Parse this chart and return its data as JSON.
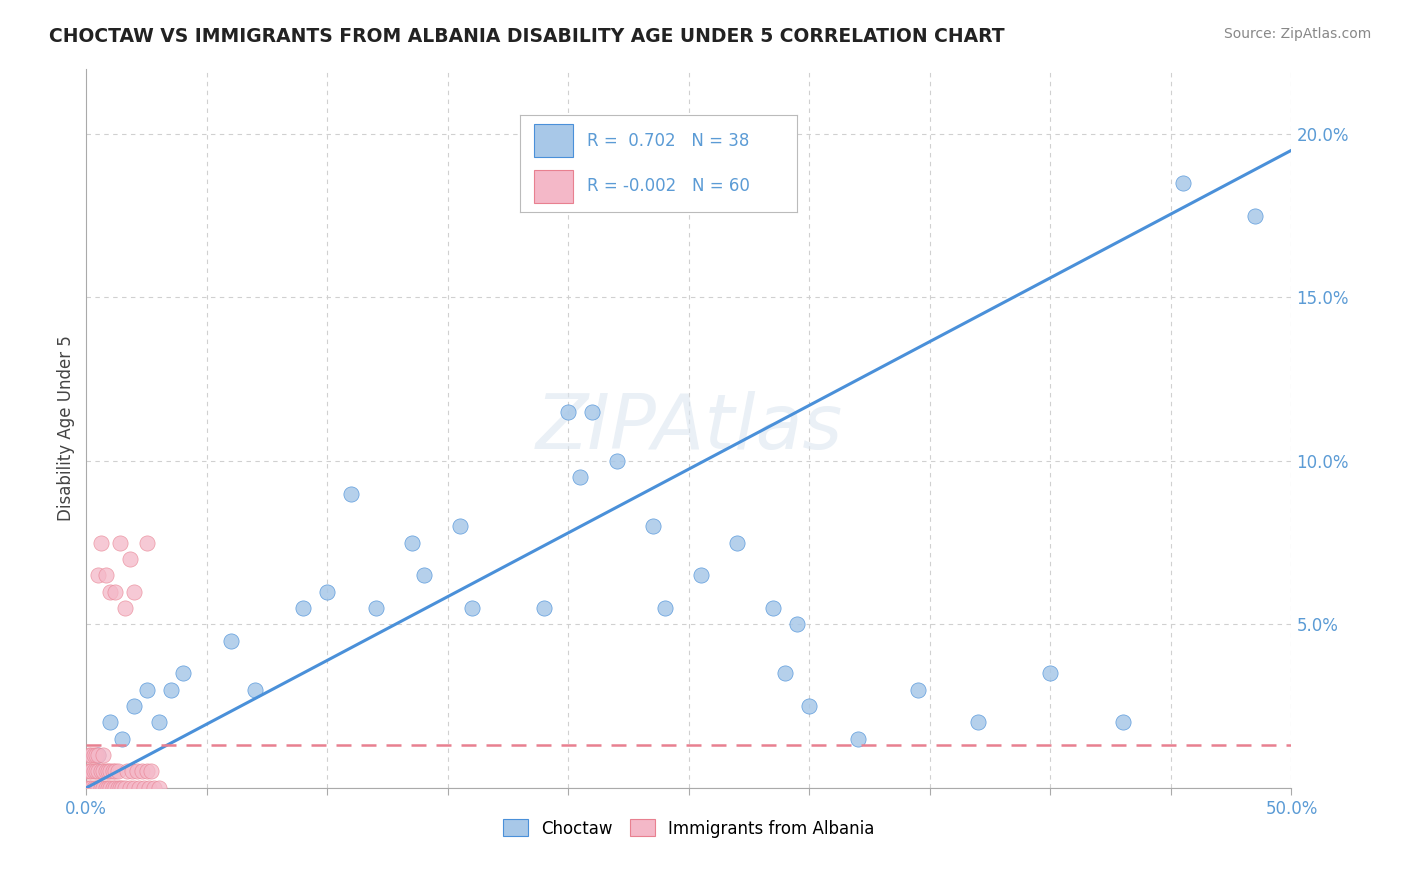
{
  "title": "CHOCTAW VS IMMIGRANTS FROM ALBANIA DISABILITY AGE UNDER 5 CORRELATION CHART",
  "source": "Source: ZipAtlas.com",
  "ylabel": "Disability Age Under 5",
  "r_choctaw": 0.702,
  "n_choctaw": 38,
  "r_albania": -0.002,
  "n_albania": 60,
  "choctaw_color": "#a8c8e8",
  "albania_color": "#f4b8c8",
  "trend_blue": "#4a90d9",
  "trend_pink": "#e88090",
  "axis_color": "#5b9bd5",
  "watermark": "ZIPAtlas",
  "background_color": "#ffffff",
  "grid_color": "#d0d0d0",
  "choctaw_x": [
    0.005,
    0.01,
    0.015,
    0.02,
    0.025,
    0.03,
    0.035,
    0.04,
    0.06,
    0.07,
    0.09,
    0.1,
    0.11,
    0.12,
    0.135,
    0.14,
    0.155,
    0.16,
    0.19,
    0.2,
    0.205,
    0.21,
    0.22,
    0.235,
    0.24,
    0.255,
    0.27,
    0.285,
    0.29,
    0.295,
    0.3,
    0.32,
    0.345,
    0.37,
    0.4,
    0.43,
    0.455,
    0.485
  ],
  "choctaw_y": [
    0.01,
    0.02,
    0.015,
    0.025,
    0.03,
    0.02,
    0.03,
    0.035,
    0.045,
    0.03,
    0.055,
    0.06,
    0.09,
    0.055,
    0.075,
    0.065,
    0.08,
    0.055,
    0.055,
    0.115,
    0.095,
    0.115,
    0.1,
    0.08,
    0.055,
    0.065,
    0.075,
    0.055,
    0.035,
    0.05,
    0.025,
    0.015,
    0.03,
    0.02,
    0.035,
    0.02,
    0.185,
    0.175
  ],
  "albania_x": [
    0.0,
    0.0,
    0.001,
    0.001,
    0.001,
    0.002,
    0.002,
    0.002,
    0.003,
    0.003,
    0.003,
    0.004,
    0.004,
    0.004,
    0.005,
    0.005,
    0.005,
    0.006,
    0.006,
    0.007,
    0.007,
    0.007,
    0.008,
    0.008,
    0.009,
    0.009,
    0.01,
    0.01,
    0.011,
    0.011,
    0.012,
    0.012,
    0.013,
    0.013,
    0.014,
    0.015,
    0.016,
    0.017,
    0.018,
    0.019,
    0.02,
    0.021,
    0.022,
    0.023,
    0.024,
    0.025,
    0.026,
    0.027,
    0.028,
    0.03,
    0.005,
    0.006,
    0.008,
    0.01,
    0.012,
    0.014,
    0.016,
    0.018,
    0.02,
    0.025
  ],
  "albania_y": [
    0.0,
    0.005,
    0.0,
    0.005,
    0.01,
    0.0,
    0.005,
    0.01,
    0.0,
    0.005,
    0.01,
    0.0,
    0.005,
    0.01,
    0.0,
    0.005,
    0.01,
    0.0,
    0.005,
    0.0,
    0.005,
    0.01,
    0.0,
    0.005,
    0.0,
    0.005,
    0.0,
    0.005,
    0.0,
    0.005,
    0.0,
    0.005,
    0.0,
    0.005,
    0.0,
    0.0,
    0.0,
    0.005,
    0.0,
    0.005,
    0.0,
    0.005,
    0.0,
    0.005,
    0.0,
    0.005,
    0.0,
    0.005,
    0.0,
    0.0,
    0.065,
    0.075,
    0.065,
    0.06,
    0.06,
    0.075,
    0.055,
    0.07,
    0.06,
    0.075
  ],
  "trend_choctaw_x0": 0.0,
  "trend_choctaw_y0": 0.0,
  "trend_choctaw_x1": 0.5,
  "trend_choctaw_y1": 0.195,
  "trend_albania_y": 0.013,
  "xlim": [
    0.0,
    0.5
  ],
  "ylim": [
    0.0,
    0.22
  ]
}
